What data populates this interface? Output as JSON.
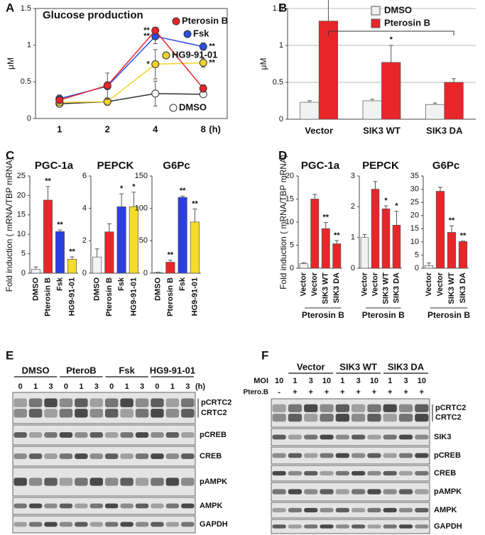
{
  "chart_data": [
    {
      "type": "line",
      "panel": "A",
      "title": "Glucose production",
      "ylabel": "μM",
      "xlabel": "(h)",
      "categories": [
        "1",
        "2",
        "4",
        "8"
      ],
      "ylim": [
        0,
        1.5
      ],
      "yticks": [
        0,
        0.5,
        1,
        1.5
      ],
      "series": [
        {
          "name": "Pterosin B",
          "color": "#e8262a",
          "values": [
            0.25,
            0.45,
            1.2,
            0.41
          ],
          "errors": [
            0.03,
            0.05,
            0.04,
            0.05
          ],
          "significance": [
            null,
            null,
            "**",
            null
          ]
        },
        {
          "name": "Fsk",
          "color": "#2c4ce0",
          "values": [
            0.27,
            0.44,
            1.12,
            0.98
          ],
          "errors": [
            0.05,
            0.18,
            0.1,
            0.05
          ],
          "significance": [
            null,
            null,
            "**",
            "**"
          ]
        },
        {
          "name": "HG9-91-01",
          "color": "#f2d32e",
          "values": [
            0.22,
            0.23,
            0.74,
            0.76
          ],
          "errors": [
            0.04,
            0.04,
            0.2,
            0.06
          ],
          "significance": [
            null,
            null,
            "*",
            "**"
          ]
        },
        {
          "name": "DMSO",
          "color": "#ffffff",
          "values": [
            0.2,
            0.23,
            0.34,
            0.33
          ],
          "errors": [
            0.03,
            0.05,
            0.17,
            0.04
          ]
        }
      ]
    },
    {
      "type": "bar",
      "panel": "B",
      "ylabel": "μM",
      "grid": true,
      "annotation": "*",
      "categories": [
        "Vector",
        "SIK3 WT",
        "SIK3 DA"
      ],
      "ylim": [
        0,
        1.5
      ],
      "yticks": [
        0,
        0.5,
        1,
        1.5
      ],
      "series": [
        {
          "name": "DMSO",
          "color": "#f2f2f2",
          "values": [
            0.23,
            0.25,
            0.2
          ],
          "errors": [
            0.02,
            0.02,
            0.02
          ]
        },
        {
          "name": "Pterosin B",
          "color": "#e8262a",
          "values": [
            1.33,
            0.77,
            0.5
          ],
          "errors": [
            0.5,
            0.23,
            0.05
          ]
        }
      ]
    },
    {
      "type": "bar",
      "panel": "C",
      "title": "PGC-1a",
      "ylabel": "Fold induction ( mRNA/TBP mRNA)",
      "categories": [
        "DMSO",
        "Pterosin B",
        "Fsk",
        "HG9-91-01"
      ],
      "values": [
        1,
        18.8,
        10.7,
        3.6
      ],
      "errors": [
        0.6,
        3.5,
        0.4,
        0.6
      ],
      "colors": [
        "#f2f2f2",
        "#e8262a",
        "#2c3fe0",
        "#f5dc2a"
      ],
      "significance": [
        null,
        "**",
        "**",
        "**"
      ],
      "ylim": [
        0,
        25
      ],
      "yticks": [
        0,
        5,
        10,
        15,
        20,
        25
      ]
    },
    {
      "type": "bar",
      "title": "PEPCK",
      "categories": [
        "DMSO",
        "Pterosin B",
        "Fsk",
        "HG9-91-01"
      ],
      "values": [
        1,
        2.55,
        4.1,
        4.1
      ],
      "errors": [
        0.5,
        0.5,
        0.8,
        0.9
      ],
      "colors": [
        "#f2f2f2",
        "#e8262a",
        "#2c3fe0",
        "#f5dc2a"
      ],
      "significance": [
        null,
        null,
        "*",
        "*"
      ],
      "ylim": [
        0,
        6
      ],
      "yticks": [
        0,
        2,
        4,
        6
      ]
    },
    {
      "type": "bar",
      "title": "G6Pc",
      "categories": [
        "DMSO",
        "Pterosin B",
        "Fsk",
        "HG9-91-01"
      ],
      "values": [
        1,
        17,
        117,
        79
      ],
      "errors": [
        0.5,
        3,
        2,
        20
      ],
      "colors": [
        "#f2f2f2",
        "#e8262a",
        "#2c3fe0",
        "#f5dc2a"
      ],
      "significance": [
        null,
        "**",
        "**",
        "**"
      ],
      "ylim": [
        0,
        150
      ],
      "yticks": [
        0,
        50,
        100,
        150
      ]
    },
    {
      "type": "bar",
      "panel": "D",
      "title": "PGC-1a",
      "ylabel": "Fold induction ( mRNA/TBP mRNA)",
      "group_label": "Pterosin B",
      "categories": [
        "Vector",
        "Vector",
        "SIK3 WT",
        "SIK3 DA"
      ],
      "values": [
        1,
        15,
        8.6,
        5.3
      ],
      "errors": [
        0.2,
        1,
        1.3,
        0.7
      ],
      "colors": [
        "#f2f2f2",
        "#e8262a",
        "#e8262a",
        "#e8262a"
      ],
      "significance": [
        null,
        null,
        "**",
        "**"
      ],
      "ylim": [
        0,
        20
      ],
      "yticks": [
        0,
        5,
        10,
        15,
        20
      ]
    },
    {
      "type": "bar",
      "title": "PEPCK",
      "group_label": "Pterosin B",
      "categories": [
        "Vector",
        "Vector",
        "SIK3 WT",
        "SIK3 DA"
      ],
      "values": [
        1,
        2.57,
        1.93,
        1.4
      ],
      "errors": [
        0.1,
        0.25,
        0.1,
        0.45
      ],
      "colors": [
        "#f2f2f2",
        "#e8262a",
        "#e8262a",
        "#e8262a"
      ],
      "significance": [
        null,
        null,
        "*",
        "*"
      ],
      "ylim": [
        0,
        3
      ],
      "yticks": [
        0,
        1,
        2,
        3
      ]
    },
    {
      "type": "bar",
      "title": "G6Pc",
      "group_label": "Pterosin B",
      "categories": [
        "Vector",
        "Vector",
        "SIK3 WT",
        "SIK3 DA"
      ],
      "values": [
        1,
        29.2,
        13.6,
        10.1
      ],
      "errors": [
        1,
        1.5,
        2.5,
        0.2
      ],
      "colors": [
        "#f2f2f2",
        "#e8262a",
        "#e8262a",
        "#e8262a"
      ],
      "significance": [
        null,
        null,
        "**",
        "**"
      ],
      "ylim": [
        0,
        35
      ],
      "yticks": [
        0,
        5,
        10,
        15,
        20,
        25,
        30,
        35
      ]
    }
  ],
  "blots": [
    {
      "panel": "E",
      "unit": "(h)",
      "groups": [
        {
          "name": "DMSO",
          "lanes": [
            "0",
            "1",
            "3"
          ]
        },
        {
          "name": "PteroB",
          "lanes": [
            "0",
            "1",
            "3"
          ]
        },
        {
          "name": "Fsk",
          "lanes": [
            "0",
            "1",
            "3"
          ]
        },
        {
          "name": "HG9-91-01",
          "lanes": [
            "0",
            "1",
            "3"
          ]
        }
      ],
      "rows": [
        [
          "pCRTC2",
          "CRTC2"
        ],
        [
          "pCREB"
        ],
        [
          "CREB"
        ],
        [
          "pAMPK"
        ],
        [
          "AMPK"
        ],
        [
          "GAPDH"
        ]
      ]
    },
    {
      "panel": "F",
      "groups": [
        {
          "name": "Vector"
        },
        {
          "name": "SIK3 WT"
        },
        {
          "name": "SIK3 DA"
        }
      ],
      "moi": {
        "label": "MOI",
        "values": [
          "10",
          "1",
          "3",
          "10",
          "1",
          "3",
          "10",
          "1",
          "3",
          "10"
        ]
      },
      "treatment": {
        "label": "Ptero.B",
        "values": [
          "-",
          "+",
          "+",
          "+",
          "+",
          "+",
          "+",
          "+",
          "+",
          "+"
        ]
      },
      "rows": [
        [
          "pCRTC2",
          "CRTC2"
        ],
        [
          "SIK3"
        ],
        [
          "pCREB"
        ],
        [
          "CREB"
        ],
        [
          "pAMPK"
        ],
        [
          "AMPK"
        ],
        [
          "GAPDH"
        ]
      ]
    }
  ]
}
